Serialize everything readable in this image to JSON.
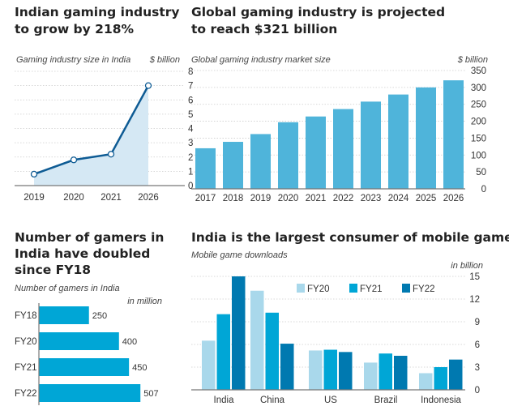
{
  "chart_data": [
    {
      "type": "line",
      "title": "Indian gaming industry to grow by 218%",
      "subtitle": "Gaming industry size in India",
      "ylabel": "$ billion",
      "categories": [
        "2019",
        "2020",
        "2021",
        "2026"
      ],
      "values": [
        0.8,
        1.8,
        2.2,
        7.0
      ],
      "ylim": [
        0,
        8
      ],
      "yticks": [
        0,
        1,
        2,
        3,
        4,
        5,
        6,
        7,
        8
      ],
      "grid": true,
      "colors": {
        "line": "#0e5b94",
        "fill": "#d5e8f4"
      }
    },
    {
      "type": "bar",
      "title": "Global gaming industry is projected to reach $321 billion",
      "subtitle": "Global gaming industry market size",
      "ylabel": "$ billion",
      "categories": [
        "2017",
        "2018",
        "2019",
        "2020",
        "2021",
        "2022",
        "2023",
        "2024",
        "2025",
        "2026"
      ],
      "values": [
        120,
        139,
        162,
        197,
        214,
        236,
        258,
        279,
        300,
        321
      ],
      "ylim": [
        0,
        350
      ],
      "yticks": [
        0,
        50,
        100,
        150,
        200,
        250,
        300,
        350
      ],
      "grid": true,
      "colors": {
        "bar": "#4fb4da"
      }
    },
    {
      "type": "bar",
      "orientation": "horizontal",
      "title": "Number of gamers in India have doubled since FY18",
      "subtitle": "Number of gamers in India",
      "unit": "in million",
      "categories": [
        "FY18",
        "FY20",
        "FY21",
        "FY22"
      ],
      "values": [
        250,
        400,
        450,
        507
      ],
      "data_labels": [
        "250",
        "400",
        "450",
        "507"
      ],
      "colors": {
        "bar": "#00a6d6"
      }
    },
    {
      "type": "bar",
      "title": "India is the largest consumer of mobile games",
      "subtitle": "Mobile game downloads",
      "ylabel": "in billion",
      "categories": [
        "India",
        "China",
        "US",
        "Brazil",
        "Indonesia"
      ],
      "series": [
        {
          "name": "FY20",
          "values": [
            6.5,
            13.1,
            5.2,
            3.6,
            2.2
          ],
          "color": "#a9d8eb"
        },
        {
          "name": "FY21",
          "values": [
            10.0,
            10.2,
            5.3,
            4.8,
            3.0
          ],
          "color": "#00a6d6"
        },
        {
          "name": "FY22",
          "values": [
            15.0,
            6.1,
            5.0,
            4.5,
            4.0
          ],
          "color": "#0079b0"
        }
      ],
      "ylim": [
        0,
        15
      ],
      "yticks": [
        0,
        3,
        6,
        9,
        12,
        15
      ],
      "grid": true,
      "legend": "top-center"
    }
  ],
  "titles": {
    "c1": [
      "Indian gaming industry",
      "to grow by 218%"
    ],
    "c2": [
      "Global gaming industry is projected",
      "to reach $321 billion"
    ],
    "c3": [
      "Number of gamers in",
      "India have doubled",
      "since FY18"
    ],
    "c4": [
      "India is the largest consumer of mobile games"
    ]
  }
}
